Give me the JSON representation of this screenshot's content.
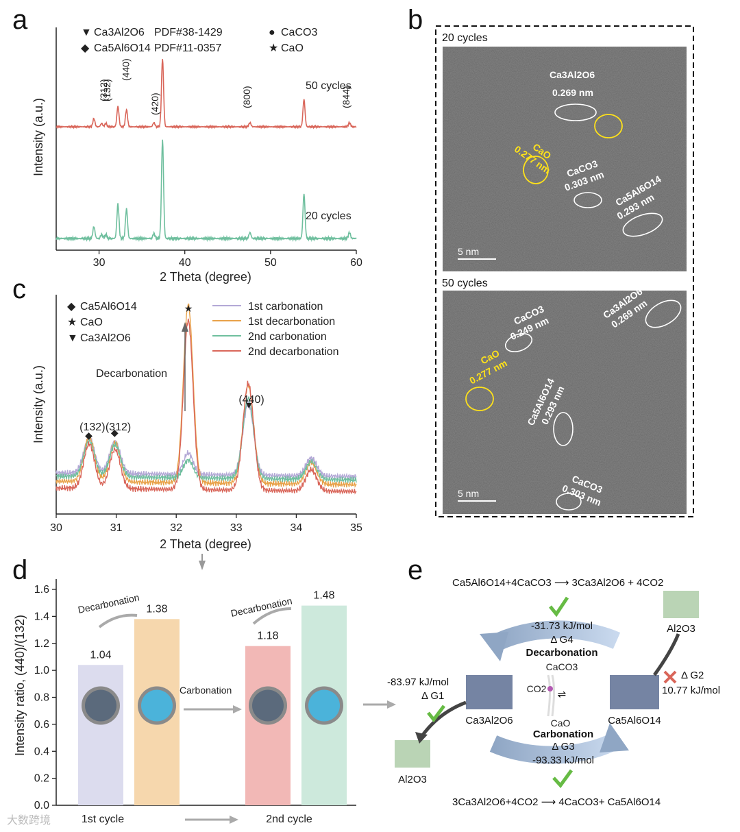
{
  "panel_labels": [
    "a",
    "b",
    "c",
    "d",
    "e"
  ],
  "panel_a": {
    "xlabel": "2 Theta (degree)",
    "ylabel": "Intensity (a.u.)",
    "xlim": [
      25,
      60
    ],
    "xticks": [
      "30",
      "40",
      "50",
      "60"
    ],
    "legend": [
      {
        "symbol": "▼",
        "text": "Ca3Al2O6",
        "pdf": "PDF#38-1429"
      },
      {
        "symbol": "◆",
        "text": "Ca5Al6O14",
        "pdf": "PDF#11-0357"
      },
      {
        "symbol": "●",
        "text": "CaCO3"
      },
      {
        "symbol": "★",
        "text": "CaO"
      }
    ],
    "series": [
      {
        "name": "50 cycles",
        "color": "#d9665a"
      },
      {
        "name": "20 cycles",
        "color": "#6fbf9e"
      }
    ],
    "miller": [
      "(132)",
      "(312)",
      "(440)",
      "(420)",
      "(800)",
      "(844)"
    ]
  },
  "panel_b": {
    "images": [
      {
        "title": "20 cycles",
        "scale": "5 nm",
        "labels": [
          {
            "text": "Ca3Al2O6",
            "sub": "0.269 nm",
            "yellow": false
          },
          {
            "text": "CaO",
            "sub": "0.277 nm",
            "yellow": true
          },
          {
            "text": "CaCO3",
            "sub": "0.303 nm",
            "yellow": false
          },
          {
            "text": "Ca5Al6O14",
            "sub": "0.293 nm",
            "yellow": false
          }
        ]
      },
      {
        "title": "50 cycles",
        "scale": "5 nm",
        "labels": [
          {
            "text": "CaCO3",
            "sub": "0.249 nm",
            "yellow": false
          },
          {
            "text": "Ca3Al2O6",
            "sub": "0.269 nm",
            "yellow": false
          },
          {
            "text": "CaO",
            "sub": "0.277 nm",
            "yellow": true
          },
          {
            "text": "Ca5Al6O14",
            "sub": "0.293 nm",
            "yellow": false
          },
          {
            "text": "CaCO3",
            "sub": "0.303 nm",
            "yellow": false
          }
        ]
      }
    ]
  },
  "panel_c": {
    "xlabel": "2 Theta (degree)",
    "ylabel": "Intensity (a.u.)",
    "xlim": [
      30,
      35
    ],
    "xticks": [
      "30",
      "31",
      "32",
      "33",
      "34",
      "35"
    ],
    "legend_phases": [
      {
        "symbol": "◆",
        "text": "Ca5Al6O14"
      },
      {
        "symbol": "★",
        "text": "CaO"
      },
      {
        "symbol": "▼",
        "text": "Ca3Al2O6"
      }
    ],
    "series": [
      {
        "name": "1st carbonation",
        "color": "#b3a8d6"
      },
      {
        "name": "1st decarbonation",
        "color": "#e8a24a"
      },
      {
        "name": "2nd carbonation",
        "color": "#6fbf9e"
      },
      {
        "name": "2nd decarbonation",
        "color": "#d9665a"
      }
    ],
    "annotation": "Decarbonation",
    "miller": [
      "(132)",
      "(312)",
      "(440)"
    ]
  },
  "chart_data": [
    {
      "type": "line",
      "panel": "a",
      "xlabel": "2 Theta (degree)",
      "ylabel": "Intensity (a.u.)",
      "xlim": [
        25,
        60
      ],
      "peaks_2theta": [
        29.4,
        30.3,
        30.8,
        32.2,
        33.2,
        36.4,
        37.4,
        47.6,
        53.9,
        59.2
      ],
      "series": [
        {
          "name": "50 cycles",
          "peak_heights": [
            0.12,
            0.05,
            0.05,
            0.3,
            0.25,
            0.06,
            1.0,
            0.06,
            0.4,
            0.06
          ]
        },
        {
          "name": "20 cycles",
          "peak_heights": [
            0.12,
            0.04,
            0.04,
            0.35,
            0.3,
            0.05,
            1.0,
            0.06,
            0.45,
            0.06
          ]
        }
      ]
    },
    {
      "type": "line",
      "panel": "c",
      "xlabel": "2 Theta (degree)",
      "ylabel": "Intensity (a.u.)",
      "xlim": [
        30,
        35
      ],
      "series": [
        {
          "name": "1st carbonation",
          "peak_heights": [
            0.2,
            0.18,
            0.12,
            0.4,
            0.1
          ]
        },
        {
          "name": "1st decarbonation",
          "peak_heights": [
            0.25,
            0.22,
            1.0,
            0.55,
            0.12
          ]
        },
        {
          "name": "2nd carbonation",
          "peak_heights": [
            0.2,
            0.18,
            0.1,
            0.45,
            0.1
          ]
        },
        {
          "name": "2nd decarbonation",
          "peak_heights": [
            0.25,
            0.22,
            0.95,
            0.6,
            0.12
          ]
        }
      ],
      "peaks_2theta": [
        30.55,
        30.98,
        32.2,
        33.2,
        34.25
      ]
    },
    {
      "type": "bar",
      "panel": "d",
      "ylabel": "Intensity ratio, (440)/(132)",
      "ylim": [
        0,
        1.6
      ],
      "yticks": [
        "0.0",
        "0.2",
        "0.4",
        "0.6",
        "0.8",
        "1.0",
        "1.2",
        "1.4",
        "1.6"
      ],
      "values": [
        1.04,
        1.38,
        1.18,
        1.48
      ],
      "value_labels": [
        "1.04",
        "1.38",
        "1.18",
        "1.48"
      ],
      "colors": [
        "#dcdcee",
        "#f6d7ad",
        "#f2b8b6",
        "#cde9dc"
      ],
      "groups": [
        "1st cycle",
        "2nd cycle"
      ],
      "annotations": [
        "Decarbonation",
        "Decarbonation",
        "Carbonation"
      ]
    }
  ],
  "panel_e": {
    "top_reaction": "Ca5Al6O14+4CaCO3 ⟶ 3Ca3Al2O6 + 4CO2",
    "bottom_reaction": "3Ca3Al2O6+4CO2 ⟶ 4CaCO3+ Ca5Al6O14",
    "dg4_value": "-31.73 kJ/mol",
    "dg4_label": "Δ G4",
    "decarb": "Decarbonation",
    "dg1_value": "-83.97 kJ/mol",
    "dg1_label": "Δ G1",
    "dg2_value": "10.77 kJ/mol",
    "dg2_label": "Δ G2",
    "carb": "Carbonation",
    "dg3_label": "Δ G3",
    "dg3_value": "-93.33 kJ/mol",
    "center_top": "CaCO3",
    "center_bottom": "CaO",
    "center_left": "CO2",
    "left_mol": "Ca3Al2O6",
    "right_mol": "Ca5Al6O14",
    "top_right_mol": "Al2O3",
    "bottom_left_mol": "Al2O3",
    "equilibrium": "⇌"
  },
  "watermark": "大数跨境"
}
